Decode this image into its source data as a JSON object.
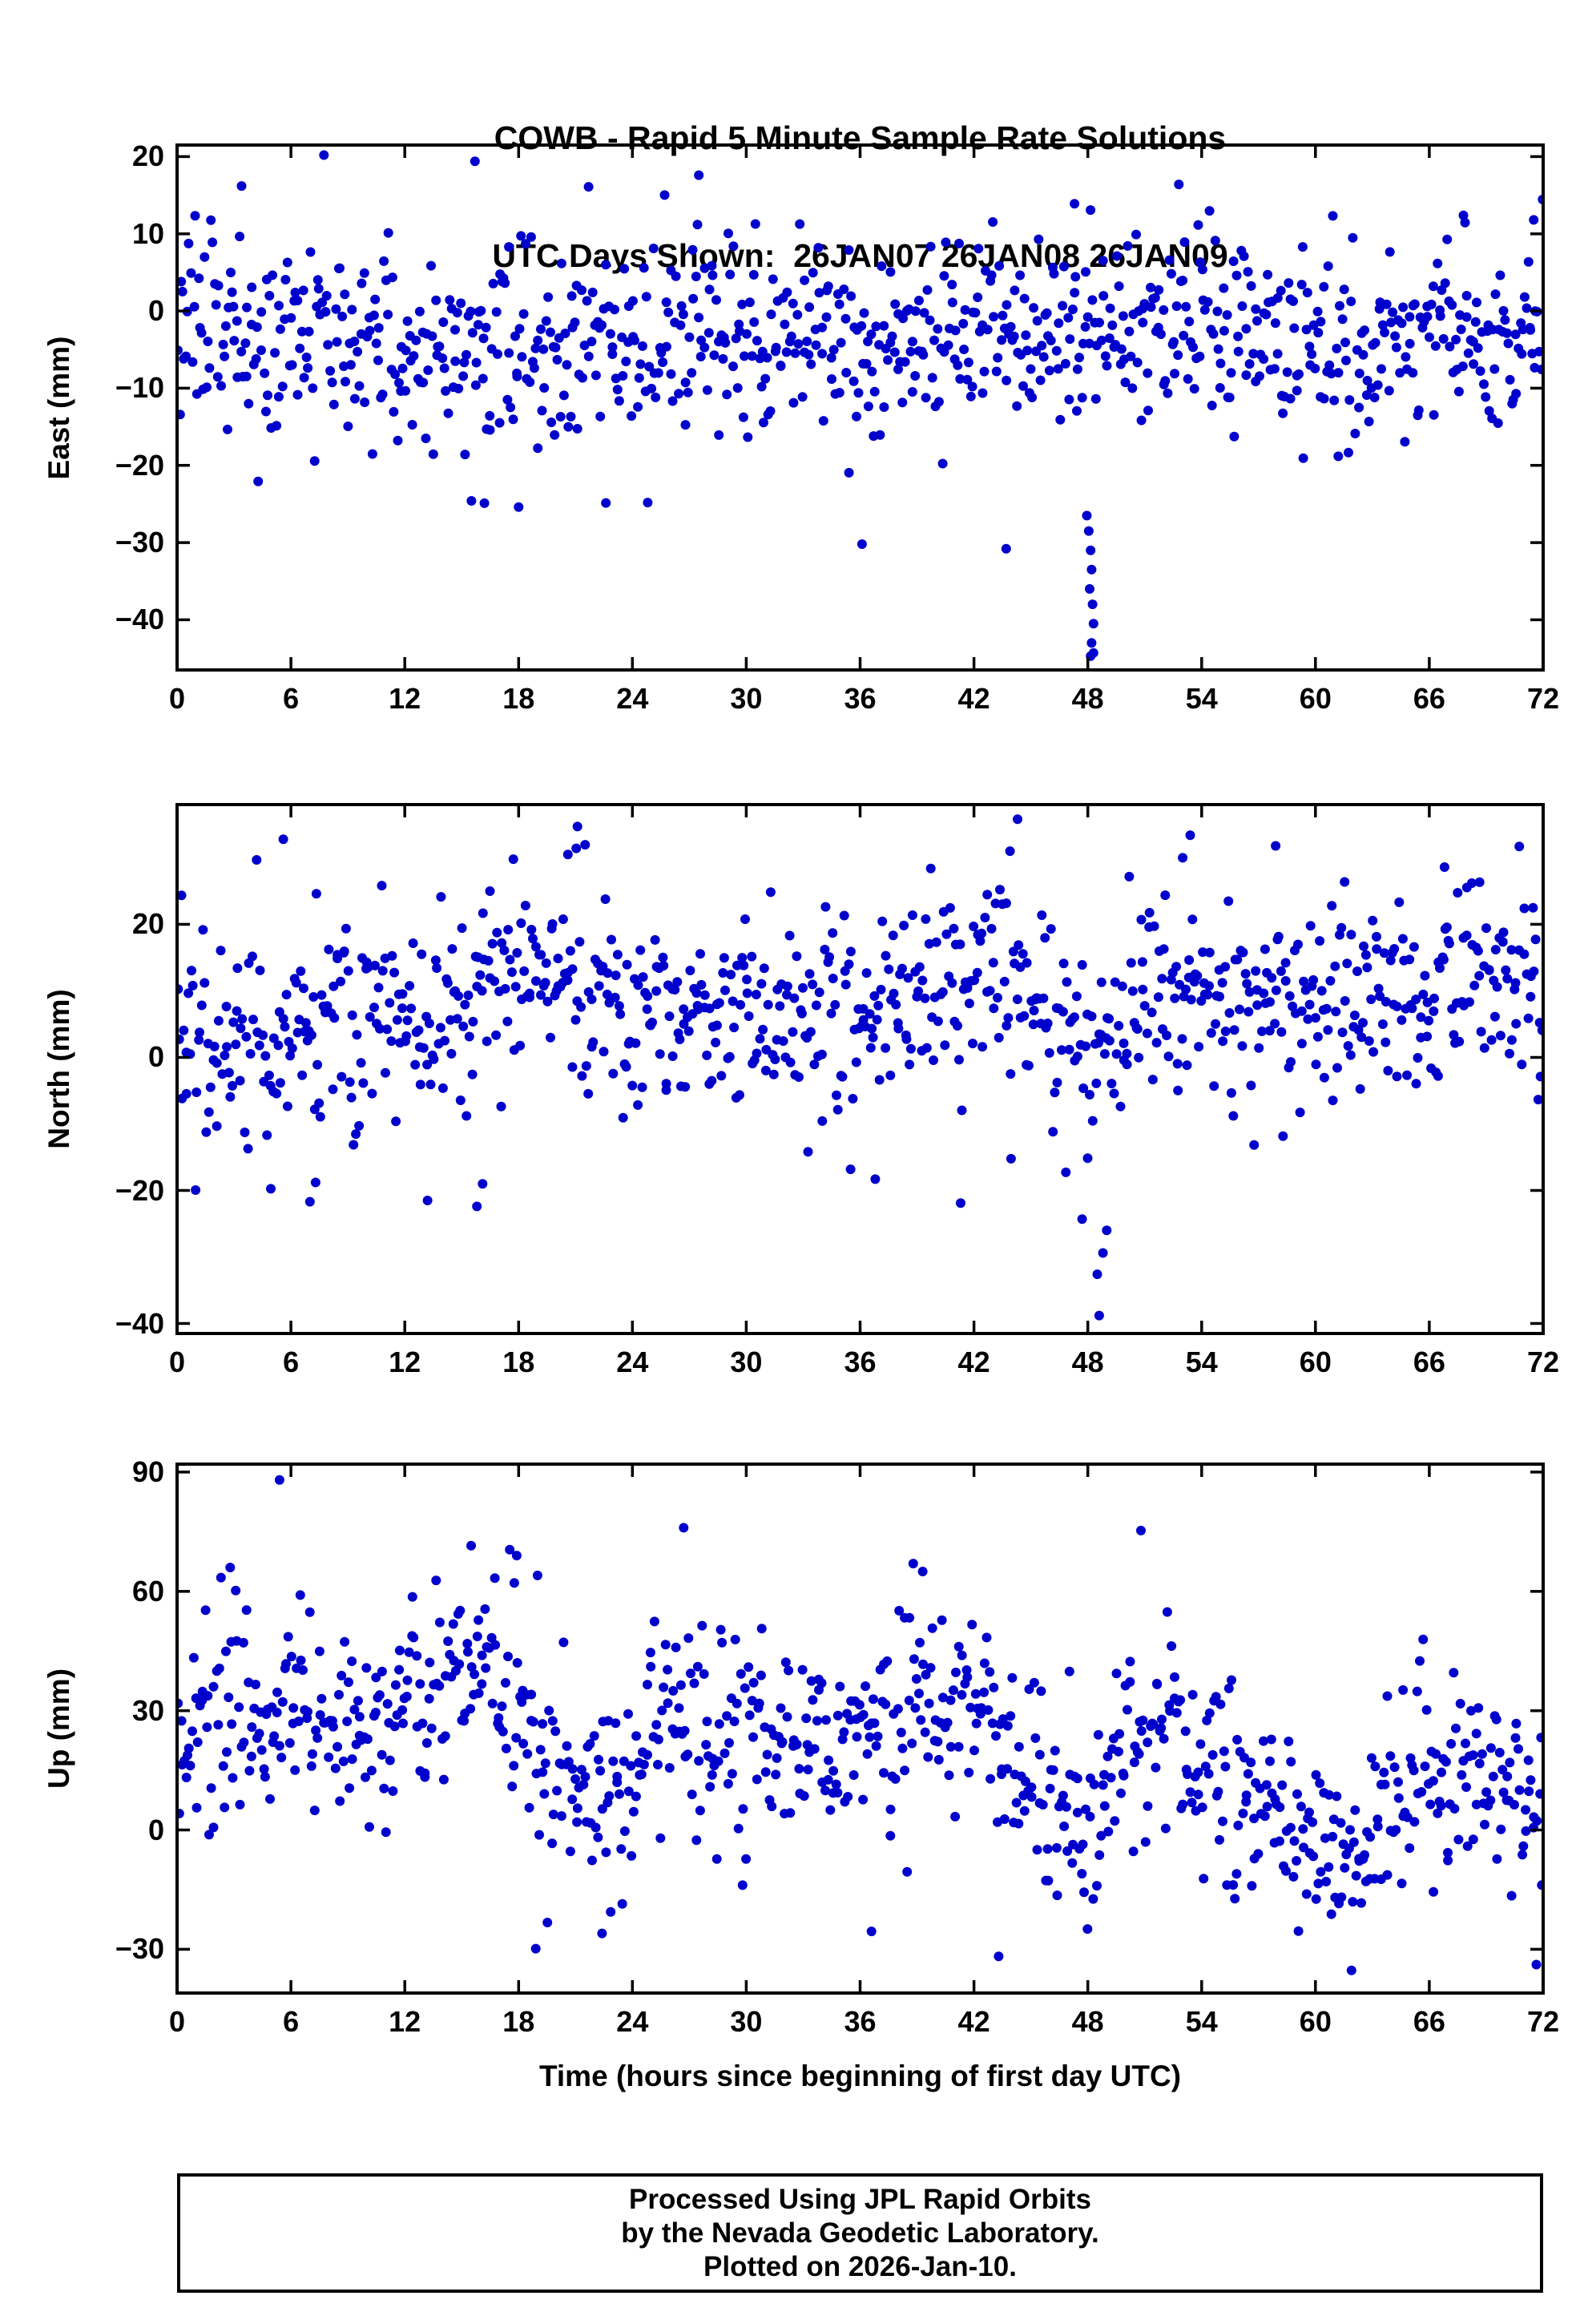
{
  "title": {
    "line1": "COWB - Rapid 5 Minute Sample Rate Solutions",
    "line2": "UTC Days Shown:  26JAN07 26JAN08 26JAN09"
  },
  "x_axis": {
    "label": "Time (hours since beginning of first day UTC)",
    "ticks": [
      0,
      6,
      12,
      18,
      24,
      30,
      36,
      42,
      48,
      54,
      60,
      66,
      72
    ],
    "tick_labels": [
      "0",
      "6",
      "12",
      "18",
      "24",
      "30",
      "36",
      "42",
      "48",
      "54",
      "60",
      "66",
      "72"
    ]
  },
  "colors": {
    "point": "#0000CC",
    "frame": "#000000",
    "background": "#FFFFFF",
    "text": "#000000"
  },
  "footer": {
    "line1": "Processed Using JPL Rapid Orbits",
    "line2": "by the Nevada Geodetic Laboratory.",
    "line3": "Plotted on 2026-Jan-10."
  },
  "chart_data": [
    {
      "type": "scatter",
      "name": "east",
      "ylabel": "East (mm)",
      "xlim": [
        0,
        72
      ],
      "ylim": [
        -46.5,
        21.5
      ],
      "yticks": [
        20,
        10,
        0,
        -10,
        -20,
        -30,
        -40
      ],
      "ytick_labels": [
        "20",
        "10",
        "0",
        "−10",
        "−20",
        "−30",
        "−40"
      ],
      "grid": false,
      "points_model": {
        "seed": 11,
        "n": 860,
        "std": 6.0,
        "wide_prob": 0.07,
        "wide_mult": 1.8,
        "clamp": [
          -25.5,
          20.5
        ],
        "mean_keyframes": [
          [
            0,
            0
          ],
          [
            2,
            -2
          ],
          [
            4,
            -5
          ],
          [
            8,
            -5
          ],
          [
            12,
            -5
          ],
          [
            16,
            -6
          ],
          [
            20,
            -5
          ],
          [
            24,
            -4
          ],
          [
            28,
            -4
          ],
          [
            32,
            -4
          ],
          [
            36,
            -4
          ],
          [
            40,
            -3
          ],
          [
            44,
            -2
          ],
          [
            48,
            -4
          ],
          [
            52,
            -1
          ],
          [
            56,
            -3
          ],
          [
            60,
            -3
          ],
          [
            64,
            -5
          ],
          [
            68,
            -4
          ],
          [
            72,
            -4
          ]
        ]
      },
      "outliers": [
        [
          3.4,
          16.2
        ],
        [
          15.7,
          19.4
        ],
        [
          27.5,
          17.6
        ],
        [
          52.8,
          16.4
        ],
        [
          47.3,
          13.9
        ],
        [
          67.8,
          12.4
        ],
        [
          71.5,
          11.8
        ],
        [
          47.95,
          -26.5
        ],
        [
          48.05,
          -28.5
        ],
        [
          48.15,
          -31
        ],
        [
          48.2,
          -33.5
        ],
        [
          48.1,
          -36
        ],
        [
          48.25,
          -38
        ],
        [
          48.3,
          -40.5
        ],
        [
          48.2,
          -43
        ],
        [
          48.15,
          -44.7
        ],
        [
          48.3,
          -44.3
        ],
        [
          16.2,
          -24.9
        ],
        [
          18.0,
          -25.4
        ],
        [
          43.7,
          -30.8
        ],
        [
          36.1,
          -30.2
        ]
      ]
    },
    {
      "type": "scatter",
      "name": "north",
      "ylabel": "North (mm)",
      "xlim": [
        0,
        72
      ],
      "ylim": [
        -41.5,
        38
      ],
      "yticks": [
        20,
        0,
        -20,
        -40
      ],
      "ytick_labels": [
        "20",
        "0",
        "−20",
        "−40"
      ],
      "grid": false,
      "points_model": {
        "seed": 22,
        "n": 860,
        "std": 7.0,
        "wide_prob": 0.07,
        "wide_mult": 1.8,
        "clamp": [
          -23.5,
          32
        ],
        "mean_keyframes": [
          [
            0,
            7
          ],
          [
            3,
            3
          ],
          [
            6,
            4
          ],
          [
            9,
            6
          ],
          [
            12,
            8
          ],
          [
            15,
            5
          ],
          [
            18,
            12
          ],
          [
            20,
            14
          ],
          [
            22,
            10
          ],
          [
            24,
            6
          ],
          [
            26,
            7
          ],
          [
            28,
            8
          ],
          [
            30,
            7
          ],
          [
            32,
            5
          ],
          [
            34,
            6
          ],
          [
            36,
            5
          ],
          [
            38,
            7
          ],
          [
            40,
            9
          ],
          [
            42,
            12
          ],
          [
            44,
            13
          ],
          [
            46,
            6
          ],
          [
            48,
            0
          ],
          [
            50,
            6
          ],
          [
            52,
            10
          ],
          [
            54,
            9
          ],
          [
            56,
            8
          ],
          [
            58,
            9
          ],
          [
            60,
            7
          ],
          [
            62,
            6
          ],
          [
            64,
            7
          ],
          [
            66,
            9
          ],
          [
            68,
            11
          ],
          [
            70,
            10
          ],
          [
            72,
            9
          ]
        ]
      },
      "outliers": [
        [
          5.6,
          32.8
        ],
        [
          21.1,
          34.7
        ],
        [
          20.6,
          30.5
        ],
        [
          44.3,
          35.8
        ],
        [
          43.9,
          31
        ],
        [
          53.4,
          33.4
        ],
        [
          53.0,
          30
        ],
        [
          57.9,
          31.8
        ],
        [
          66.8,
          28.6
        ],
        [
          7.0,
          -21.7
        ],
        [
          7.3,
          -18.8
        ],
        [
          13.2,
          -21.5
        ],
        [
          15.8,
          -22.4
        ],
        [
          16.1,
          -19
        ],
        [
          41.3,
          -21.9
        ],
        [
          36.8,
          -18.3
        ],
        [
          47.7,
          -24.3
        ],
        [
          48.5,
          -32.6
        ],
        [
          48.6,
          -38.8
        ],
        [
          48.8,
          -29.4
        ],
        [
          49.0,
          -26
        ]
      ]
    },
    {
      "type": "scatter",
      "name": "up",
      "ylabel": "Up (mm)",
      "xlim": [
        0,
        72
      ],
      "ylim": [
        -41,
        92
      ],
      "yticks": [
        90,
        60,
        30,
        0,
        -30
      ],
      "ytick_labels": [
        "90",
        "60",
        "30",
        "0",
        "−30"
      ],
      "grid": false,
      "points_model": {
        "seed": 33,
        "n": 860,
        "std": 12.0,
        "wide_prob": 0.07,
        "wide_mult": 1.7,
        "clamp": [
          -34,
          78
        ],
        "mean_keyframes": [
          [
            0,
            20
          ],
          [
            2,
            28
          ],
          [
            5,
            30
          ],
          [
            8,
            28
          ],
          [
            11,
            30
          ],
          [
            14,
            36
          ],
          [
            16,
            40
          ],
          [
            18,
            30
          ],
          [
            20,
            10
          ],
          [
            22,
            6
          ],
          [
            24,
            12
          ],
          [
            26,
            34
          ],
          [
            28,
            26
          ],
          [
            30,
            24
          ],
          [
            32,
            22
          ],
          [
            34,
            18
          ],
          [
            36,
            16
          ],
          [
            38,
            32
          ],
          [
            40,
            34
          ],
          [
            42,
            28
          ],
          [
            44,
            18
          ],
          [
            46,
            8
          ],
          [
            48,
            2
          ],
          [
            50,
            22
          ],
          [
            52,
            28
          ],
          [
            54,
            20
          ],
          [
            56,
            14
          ],
          [
            58,
            6
          ],
          [
            60,
            -4
          ],
          [
            62,
            -8
          ],
          [
            64,
            10
          ],
          [
            66,
            16
          ],
          [
            68,
            12
          ],
          [
            70,
            8
          ],
          [
            72,
            12
          ]
        ]
      },
      "outliers": [
        [
          5.4,
          88
        ],
        [
          26.7,
          76
        ],
        [
          50.8,
          75.3
        ],
        [
          15.5,
          71.5
        ],
        [
          17.9,
          69
        ],
        [
          2.8,
          66
        ],
        [
          19.0,
          64
        ],
        [
          38.8,
          67
        ],
        [
          39.3,
          65
        ],
        [
          61.9,
          -35.3
        ],
        [
          43.3,
          -31.8
        ],
        [
          22.4,
          -26
        ],
        [
          36.6,
          -25.5
        ]
      ]
    }
  ]
}
